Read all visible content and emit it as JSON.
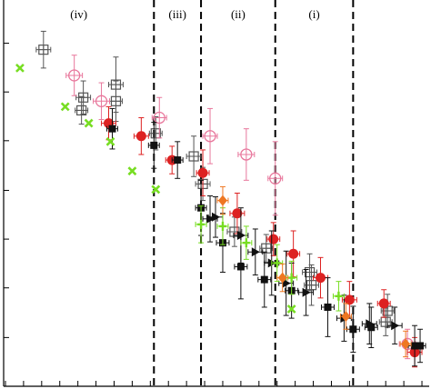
{
  "chart_data": {
    "type": "scatter",
    "title": "",
    "xlabel": "",
    "ylabel": "",
    "xlim": [
      0,
      47
    ],
    "ylim": [
      0,
      42
    ],
    "x_ticks": [
      0.2,
      2.2,
      4.2,
      6.2,
      8.2,
      10.2,
      12.2,
      14.2,
      16.2,
      18.2,
      20.2,
      22.2,
      24.2,
      26.2,
      28.2,
      30.2,
      32.2,
      34.2,
      36.2,
      38.2,
      40.2,
      42.2,
      44.2,
      46.2
    ],
    "y_ticks": [
      5.3,
      10.7,
      16.0,
      21.3,
      26.7,
      32.0,
      37.3
    ],
    "tick_labels_shown": false,
    "grid": false,
    "legend": null,
    "dividers_x": [
      16.6,
      21.8,
      30.0,
      38.6
    ],
    "regions": [
      {
        "label": "(iv)",
        "x": 8.3
      },
      {
        "label": "(iii)",
        "x": 19.2
      },
      {
        "label": "(ii)",
        "x": 25.9
      },
      {
        "label": "(i)",
        "x": 34.3
      }
    ],
    "series": [
      {
        "marker": "open-square-cross",
        "color": "#555555",
        "points": [
          {
            "x": 4.4,
            "y": 36.6,
            "xerr": 0.8,
            "yerr": 2.0
          },
          {
            "x": 8.8,
            "y": 31.4,
            "xerr": 0.8,
            "yerr": 1.8
          },
          {
            "x": 8.6,
            "y": 30.0,
            "xerr": 0.7,
            "yerr": 1.5
          },
          {
            "x": 12.4,
            "y": 32.8,
            "xerr": 0.8,
            "yerr": 3.0
          },
          {
            "x": 12.4,
            "y": 31.0,
            "xerr": 0.7,
            "yerr": 2.2
          },
          {
            "x": 16.8,
            "y": 27.5,
            "xerr": 0.7,
            "yerr": 1.8
          },
          {
            "x": 21.0,
            "y": 25.0,
            "xerr": 0.8,
            "yerr": 2.2
          },
          {
            "x": 22.0,
            "y": 22.0,
            "xerr": 0.8,
            "yerr": 1.8
          },
          {
            "x": 25.5,
            "y": 16.8,
            "xerr": 0.8,
            "yerr": 1.6
          },
          {
            "x": 29.0,
            "y": 15.0,
            "xerr": 0.7,
            "yerr": 1.5
          },
          {
            "x": 33.8,
            "y": 12.4,
            "xerr": 0.8,
            "yerr": 2.0
          },
          {
            "x": 34.0,
            "y": 11.0,
            "xerr": 0.8,
            "yerr": 2.2
          },
          {
            "x": 42.4,
            "y": 8.2,
            "xerr": 0.7,
            "yerr": 1.8
          },
          {
            "x": 42.2,
            "y": 7.0,
            "xerr": 0.7,
            "yerr": 1.5
          }
        ]
      },
      {
        "marker": "open-circle",
        "color": "#e8779c",
        "points": [
          {
            "x": 7.8,
            "y": 33.8,
            "xerr": 0.9,
            "yerr": 2.2
          },
          {
            "x": 10.8,
            "y": 31.0,
            "xerr": 0.9,
            "yerr": 2.0
          },
          {
            "x": 17.2,
            "y": 29.2,
            "xerr": 0.8,
            "yerr": 2.2
          },
          {
            "x": 22.8,
            "y": 27.2,
            "xerr": 0.8,
            "yerr": 3.0
          },
          {
            "x": 26.8,
            "y": 25.2,
            "xerr": 0.9,
            "yerr": 2.8
          },
          {
            "x": 30.0,
            "y": 22.6,
            "xerr": 0.8,
            "yerr": 4.0
          },
          {
            "x": 44.6,
            "y": 4.6,
            "xerr": 0.9,
            "yerr": 1.6
          }
        ]
      },
      {
        "marker": "filled-circle",
        "color": "#dd2222",
        "points": [
          {
            "x": 11.6,
            "y": 28.6,
            "xerr": 0.8,
            "yerr": 1.8
          },
          {
            "x": 15.2,
            "y": 27.2,
            "xerr": 0.8,
            "yerr": 2.0
          },
          {
            "x": 18.6,
            "y": 24.6,
            "xerr": 0.7,
            "yerr": 1.5
          },
          {
            "x": 22.0,
            "y": 23.2,
            "xerr": 0.7,
            "yerr": 2.5
          },
          {
            "x": 25.8,
            "y": 18.8,
            "xerr": 0.8,
            "yerr": 2.2
          },
          {
            "x": 29.8,
            "y": 16.0,
            "xerr": 0.7,
            "yerr": 1.8
          },
          {
            "x": 32.0,
            "y": 14.4,
            "xerr": 0.7,
            "yerr": 2.5
          },
          {
            "x": 35.0,
            "y": 11.8,
            "xerr": 0.8,
            "yerr": 2.2
          },
          {
            "x": 38.2,
            "y": 9.4,
            "xerr": 0.8,
            "yerr": 2.0
          },
          {
            "x": 42.0,
            "y": 9.0,
            "xerr": 0.7,
            "yerr": 1.5
          },
          {
            "x": 45.4,
            "y": 3.7,
            "xerr": 0.8,
            "yerr": 1.6
          }
        ]
      },
      {
        "marker": "filled-square",
        "color": "#111111",
        "points": [
          {
            "x": 12.0,
            "y": 28.0,
            "xerr": 0.6,
            "yerr": 2.2
          },
          {
            "x": 16.6,
            "y": 26.2,
            "xerr": 0.6,
            "yerr": 2.5
          },
          {
            "x": 19.2,
            "y": 24.6,
            "xerr": 0.6,
            "yerr": 2.0
          },
          {
            "x": 21.8,
            "y": 19.4,
            "xerr": 0.6,
            "yerr": 3.0
          },
          {
            "x": 24.2,
            "y": 15.6,
            "xerr": 0.7,
            "yerr": 3.2
          },
          {
            "x": 26.2,
            "y": 13.0,
            "xerr": 0.7,
            "yerr": 3.5
          },
          {
            "x": 28.8,
            "y": 11.6,
            "xerr": 0.7,
            "yerr": 3.0
          },
          {
            "x": 31.8,
            "y": 10.4,
            "xerr": 0.7,
            "yerr": 3.0
          },
          {
            "x": 35.8,
            "y": 8.6,
            "xerr": 0.7,
            "yerr": 3.2
          },
          {
            "x": 38.6,
            "y": 6.2,
            "xerr": 0.7,
            "yerr": 2.5
          },
          {
            "x": 40.6,
            "y": 6.4,
            "xerr": 0.7,
            "yerr": 2.2
          },
          {
            "x": 45.4,
            "y": 4.4,
            "xerr": 0.7,
            "yerr": 2.2
          },
          {
            "x": 46.0,
            "y": 4.4,
            "xerr": 0.6,
            "yerr": 1.8
          }
        ]
      },
      {
        "marker": "filled-triangle-right",
        "color": "#111111",
        "points": [
          {
            "x": 22.8,
            "y": 18.2,
            "xerr": 0.8,
            "yerr": 2.5
          },
          {
            "x": 23.4,
            "y": 18.4,
            "xerr": 0.8,
            "yerr": 2.2
          },
          {
            "x": 26.2,
            "y": 16.4,
            "xerr": 0.8,
            "yerr": 3.0
          },
          {
            "x": 27.8,
            "y": 14.6,
            "xerr": 0.8,
            "yerr": 2.5
          },
          {
            "x": 29.6,
            "y": 13.4,
            "xerr": 0.8,
            "yerr": 3.5
          },
          {
            "x": 31.2,
            "y": 11.2,
            "xerr": 0.8,
            "yerr": 3.5
          },
          {
            "x": 33.4,
            "y": 10.2,
            "xerr": 0.8,
            "yerr": 2.5
          },
          {
            "x": 37.6,
            "y": 7.4,
            "xerr": 0.8,
            "yerr": 2.5
          },
          {
            "x": 40.4,
            "y": 6.8,
            "xerr": 0.8,
            "yerr": 2.2
          },
          {
            "x": 43.2,
            "y": 6.6,
            "xerr": 0.8,
            "yerr": 2.0
          }
        ]
      },
      {
        "marker": "cross-x",
        "color": "#77dd22",
        "points": [
          {
            "x": 1.8,
            "y": 34.6
          },
          {
            "x": 6.8,
            "y": 30.4
          },
          {
            "x": 9.4,
            "y": 28.6
          },
          {
            "x": 11.8,
            "y": 26.6
          },
          {
            "x": 14.2,
            "y": 23.4
          },
          {
            "x": 16.8,
            "y": 21.4
          },
          {
            "x": 31.8,
            "y": 8.4
          }
        ]
      },
      {
        "marker": "plus",
        "color": "#77dd22",
        "points": [
          {
            "x": 21.8,
            "y": 17.6,
            "xerr": 0.6,
            "yerr": 2.0
          },
          {
            "x": 24.2,
            "y": 17.4,
            "xerr": 0.6,
            "yerr": 2.0
          },
          {
            "x": 26.8,
            "y": 15.6,
            "xerr": 0.6,
            "yerr": 1.8
          },
          {
            "x": 30.2,
            "y": 13.4,
            "xerr": 0.6,
            "yerr": 2.0
          },
          {
            "x": 31.8,
            "y": 11.8,
            "xerr": 0.6,
            "yerr": 1.8
          },
          {
            "x": 37.0,
            "y": 9.8,
            "xerr": 0.6,
            "yerr": 1.6
          }
        ]
      },
      {
        "marker": "filled-diamond",
        "color": "#ee7722",
        "points": [
          {
            "x": 24.2,
            "y": 20.2,
            "xerr": 0.6,
            "yerr": 1.5
          },
          {
            "x": 30.8,
            "y": 11.8,
            "xerr": 0.6,
            "yerr": 1.5
          },
          {
            "x": 37.8,
            "y": 7.6,
            "xerr": 0.6,
            "yerr": 1.4
          },
          {
            "x": 44.4,
            "y": 4.6,
            "xerr": 0.6,
            "yerr": 1.4
          }
        ]
      }
    ]
  }
}
